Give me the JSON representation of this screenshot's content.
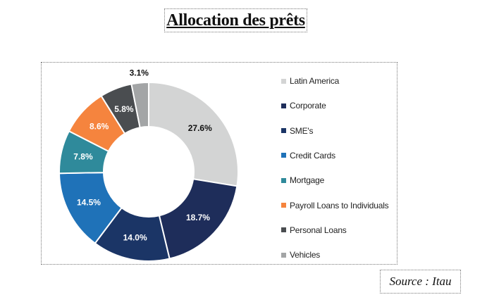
{
  "title": "Allocation des prêts",
  "source": "Source : Itau",
  "chart_data": {
    "type": "pie",
    "donut": true,
    "categories": [
      "Latin America",
      "Corporate",
      "SME's",
      "Credit Cards",
      "Mortgage",
      "Payroll Loans to Individuals",
      "Personal Loans",
      "Vehicles"
    ],
    "values": [
      27.6,
      18.7,
      14.0,
      14.5,
      7.8,
      8.6,
      5.8,
      3.1
    ],
    "labels": [
      "27.6%",
      "18.7%",
      "14.0%",
      "14.5%",
      "7.8%",
      "8.6%",
      "5.8%",
      "3.1%"
    ],
    "colors": [
      "#d3d4d4",
      "#1e2d5a",
      "#1b3566",
      "#1f72b8",
      "#2f8a9b",
      "#f5843e",
      "#4a4d50",
      "#a3a5a6"
    ],
    "label_colors": [
      "#111111",
      "#ffffff",
      "#ffffff",
      "#ffffff",
      "#ffffff",
      "#ffffff",
      "#ffffff",
      "#111111"
    ],
    "legend_position": "right"
  }
}
